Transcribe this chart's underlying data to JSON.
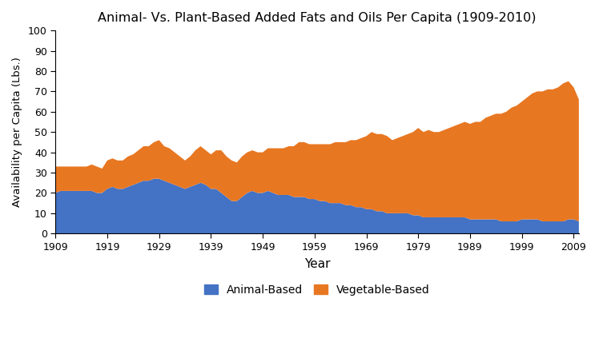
{
  "title": "Animal- Vs. Plant-Based Added Fats and Oils Per Capita (1909-2010)",
  "xlabel": "Year",
  "ylabel": "Availability per Capita (Lbs.)",
  "ylim": [
    0,
    100
  ],
  "yticks": [
    0,
    10,
    20,
    30,
    40,
    50,
    60,
    70,
    80,
    90,
    100
  ],
  "xtick_years": [
    1909,
    1919,
    1929,
    1939,
    1949,
    1959,
    1969,
    1979,
    1989,
    1999,
    2009
  ],
  "animal_color": "#4472C4",
  "vegetable_color": "#E87722",
  "years": [
    1909,
    1910,
    1911,
    1912,
    1913,
    1914,
    1915,
    1916,
    1917,
    1918,
    1919,
    1920,
    1921,
    1922,
    1923,
    1924,
    1925,
    1926,
    1927,
    1928,
    1929,
    1930,
    1931,
    1932,
    1933,
    1934,
    1935,
    1936,
    1937,
    1938,
    1939,
    1940,
    1941,
    1942,
    1943,
    1944,
    1945,
    1946,
    1947,
    1948,
    1949,
    1950,
    1951,
    1952,
    1953,
    1954,
    1955,
    1956,
    1957,
    1958,
    1959,
    1960,
    1961,
    1962,
    1963,
    1964,
    1965,
    1966,
    1967,
    1968,
    1969,
    1970,
    1971,
    1972,
    1973,
    1974,
    1975,
    1976,
    1977,
    1978,
    1979,
    1980,
    1981,
    1982,
    1983,
    1984,
    1985,
    1986,
    1987,
    1988,
    1989,
    1990,
    1991,
    1992,
    1993,
    1994,
    1995,
    1996,
    1997,
    1998,
    1999,
    2000,
    2001,
    2002,
    2003,
    2004,
    2005,
    2006,
    2007,
    2008,
    2009,
    2010
  ],
  "animal_based": [
    20,
    21,
    21,
    21,
    21,
    21,
    21,
    21,
    20,
    20,
    22,
    23,
    22,
    22,
    23,
    24,
    25,
    26,
    26,
    27,
    27,
    26,
    25,
    24,
    23,
    22,
    23,
    24,
    25,
    24,
    22,
    22,
    20,
    18,
    16,
    16,
    18,
    20,
    21,
    20,
    20,
    21,
    20,
    19,
    19,
    19,
    18,
    18,
    18,
    17,
    17,
    16,
    16,
    15,
    15,
    15,
    14,
    14,
    13,
    13,
    12,
    12,
    11,
    11,
    10,
    10,
    10,
    10,
    10,
    9,
    9,
    8,
    8,
    8,
    8,
    8,
    8,
    8,
    8,
    8,
    7,
    7,
    7,
    7,
    7,
    7,
    6,
    6,
    6,
    6,
    7,
    7,
    7,
    7,
    6,
    6,
    6,
    6,
    6,
    7,
    7,
    6
  ],
  "vegetable_based": [
    13,
    12,
    12,
    12,
    12,
    12,
    12,
    13,
    13,
    12,
    14,
    14,
    14,
    14,
    15,
    15,
    16,
    17,
    17,
    18,
    19,
    17,
    17,
    16,
    15,
    14,
    15,
    17,
    18,
    17,
    17,
    19,
    21,
    20,
    20,
    19,
    20,
    20,
    20,
    20,
    20,
    21,
    22,
    23,
    23,
    24,
    25,
    27,
    27,
    27,
    27,
    28,
    28,
    29,
    30,
    30,
    31,
    32,
    33,
    34,
    36,
    38,
    38,
    38,
    38,
    36,
    37,
    38,
    39,
    41,
    43,
    42,
    43,
    42,
    42,
    43,
    44,
    45,
    46,
    47,
    47,
    48,
    48,
    50,
    51,
    52,
    53,
    54,
    56,
    57,
    58,
    60,
    62,
    63,
    64,
    65,
    65,
    66,
    68,
    68,
    65,
    60
  ],
  "background_color": "#ffffff",
  "top_spine": false,
  "right_spine": false
}
